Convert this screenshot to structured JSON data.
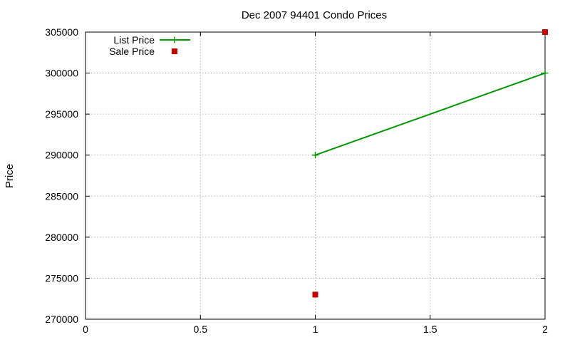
{
  "chart_data": {
    "type": "line",
    "title": "Dec 2007 94401 Condo Prices",
    "xlabel": "",
    "ylabel": "Price",
    "xlim": [
      0,
      2
    ],
    "ylim": [
      270000,
      305000
    ],
    "x_ticks": [
      0,
      0.5,
      1,
      1.5,
      2
    ],
    "y_ticks": [
      270000,
      275000,
      280000,
      285000,
      290000,
      295000,
      300000,
      305000
    ],
    "x_tick_labels": [
      "0",
      "0.5",
      "1",
      "1.5",
      "2"
    ],
    "y_tick_labels": [
      "270000",
      "275000",
      "280000",
      "285000",
      "290000",
      "295000",
      "300000",
      "305000"
    ],
    "grid": true,
    "legend_position": "top-left",
    "series": [
      {
        "name": "List Price",
        "style": "linespoints",
        "marker": "plus",
        "color": "#009900",
        "x": [
          1,
          2
        ],
        "y": [
          290000,
          300000
        ]
      },
      {
        "name": "Sale Price",
        "style": "points",
        "marker": "square",
        "color": "#cc0000",
        "x": [
          1,
          2
        ],
        "y": [
          273000,
          305000
        ]
      }
    ]
  }
}
